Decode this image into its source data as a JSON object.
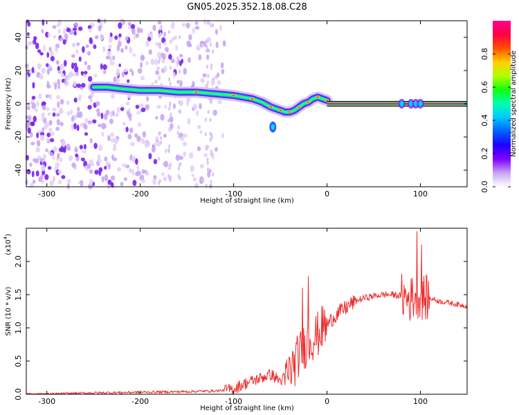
{
  "chart_data": [
    {
      "type": "heatmap",
      "title": "GN05.2025.352.18.08.C28",
      "xlabel": "Height of straight line (km)",
      "ylabel": "Frequency (Hz)",
      "xlim": [
        -322,
        150
      ],
      "ylim": [
        -50,
        50
      ],
      "x_ticks": [
        -300,
        -200,
        -100,
        0,
        100
      ],
      "y_ticks": [
        -40,
        -20,
        0,
        20,
        40
      ],
      "colorbar": {
        "label": "Normalized spectral amplitude",
        "range": [
          0,
          1
        ],
        "ticks": [
          "0.0",
          "0.2",
          "0.4",
          "0.6",
          "0.8"
        ],
        "colors": [
          "#ffffff",
          "#c8a4f4",
          "#8000ff",
          "#2000ff",
          "#0060ff",
          "#00c8ff",
          "#00ffb0",
          "#10ff10",
          "#b0ff00",
          "#ffd000",
          "#ff5000",
          "#ff0040",
          "#ff0090"
        ]
      },
      "ridge": {
        "x": [
          -250,
          -235,
          -220,
          -200,
          -180,
          -160,
          -140,
          -120,
          -100,
          -90,
          -80,
          -70,
          -60,
          -55,
          -50,
          -45,
          -40,
          -35,
          -30,
          -25,
          -20,
          -15,
          -10,
          -5,
          0
        ],
        "y": [
          10,
          10,
          9,
          8,
          8,
          7,
          7,
          6,
          5,
          4,
          3,
          1,
          -2,
          -3,
          -4,
          -5,
          -5,
          -4,
          -2,
          0,
          1,
          3,
          4,
          3,
          2
        ]
      },
      "blob": {
        "x": -58,
        "y": -14
      },
      "plateau": {
        "x_start": 0,
        "x_end": 150,
        "y": 0
      },
      "noise_region_x": [
        -322,
        -120
      ],
      "bursts_x": [
        80,
        90,
        95,
        100
      ]
    },
    {
      "type": "line",
      "xlabel": "Height of straight line (km)",
      "ylabel": "SNR (10 * v/v)",
      "scale_label": "(x10",
      "scale_exp": "4",
      "xlim": [
        -322,
        150
      ],
      "ylim": [
        0,
        2.5
      ],
      "x_ticks": [
        -300,
        -200,
        -100,
        0,
        100
      ],
      "y_ticks": [
        "0.0",
        "0.5",
        "1.0",
        "1.5",
        "2.0"
      ],
      "series": [
        {
          "name": "SNR",
          "color": "#ee2a2a",
          "x": [
            -322,
            -300,
            -250,
            -200,
            -150,
            -120,
            -110,
            -100,
            -90,
            -80,
            -70,
            -60,
            -50,
            -45,
            -40,
            -35,
            -30,
            -25,
            -20,
            -15,
            -10,
            -5,
            0,
            10,
            20,
            30,
            40,
            50,
            60,
            70,
            80,
            85,
            90,
            95,
            100,
            105,
            110,
            120,
            130,
            140,
            150
          ],
          "y": [
            0.0,
            0.0,
            0.02,
            0.03,
            0.04,
            0.05,
            0.06,
            0.08,
            0.15,
            0.2,
            0.25,
            0.3,
            0.2,
            0.25,
            0.35,
            0.45,
            0.6,
            0.7,
            0.8,
            0.85,
            0.9,
            1.0,
            1.05,
            1.2,
            1.3,
            1.4,
            1.45,
            1.48,
            1.5,
            1.5,
            1.48,
            1.45,
            1.42,
            1.5,
            1.48,
            1.45,
            1.45,
            1.4,
            1.38,
            1.35,
            1.33
          ]
        }
      ],
      "spikes": [
        {
          "x": -26,
          "y": 1.6
        },
        {
          "x": -20,
          "y": 1.78
        },
        {
          "x": 91,
          "y": 1.75
        },
        {
          "x": 96,
          "y": 2.45
        },
        {
          "x": 101,
          "y": 2.25
        }
      ]
    }
  ]
}
